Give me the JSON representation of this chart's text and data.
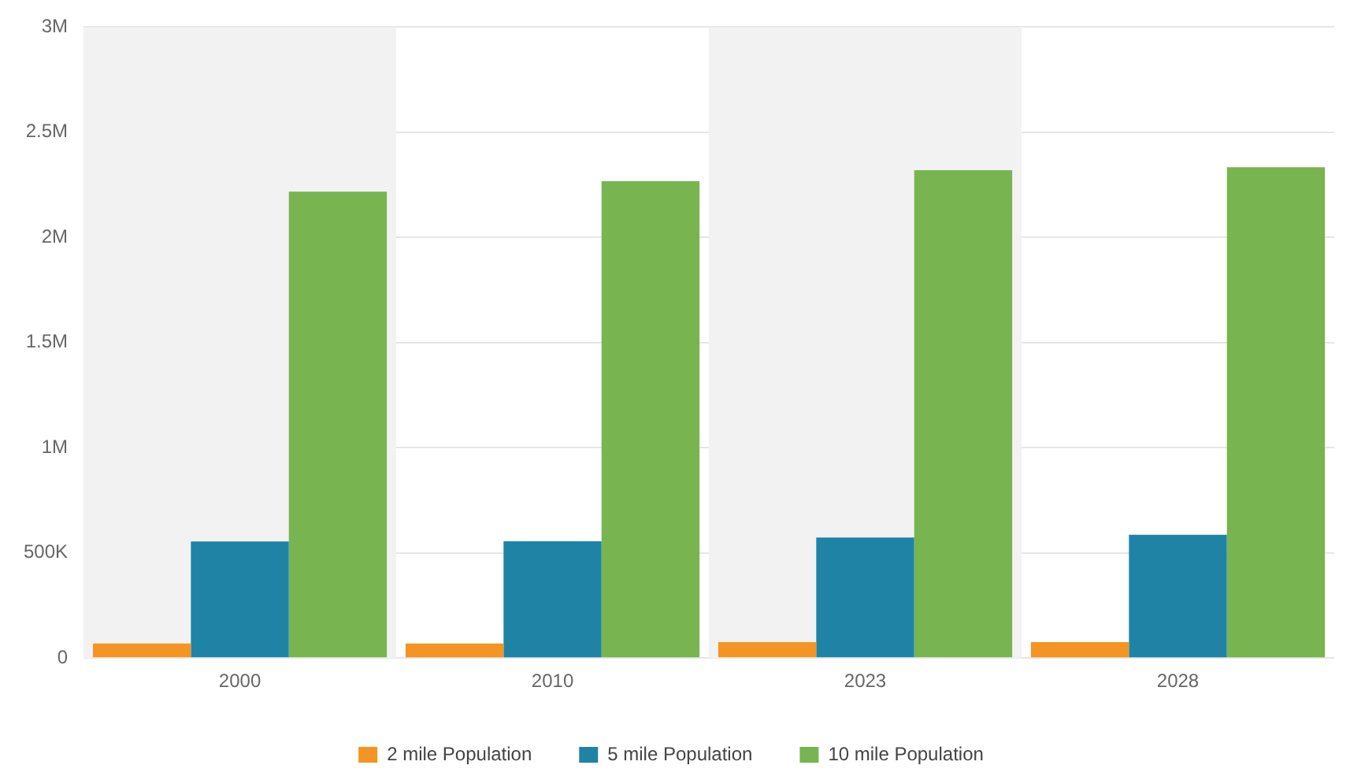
{
  "chart_data": {
    "type": "bar",
    "categories": [
      "2000",
      "2010",
      "2023",
      "2028"
    ],
    "series": [
      {
        "name": "2 mile Population",
        "color": "#f39423",
        "values": [
          69000,
          69000,
          76000,
          76000
        ]
      },
      {
        "name": "5 mile Population",
        "color": "#1f83a6",
        "values": [
          554000,
          555000,
          573000,
          586000
        ]
      },
      {
        "name": "10 mile Population",
        "color": "#78b450",
        "values": [
          2218000,
          2267000,
          2320000,
          2334000
        ]
      }
    ],
    "ylim": [
      0,
      3000000
    ],
    "yticks": [
      {
        "value": 0,
        "label": "0"
      },
      {
        "value": 500000,
        "label": "500K"
      },
      {
        "value": 1000000,
        "label": "1M"
      },
      {
        "value": 1500000,
        "label": "1.5M"
      },
      {
        "value": 2000000,
        "label": "2M"
      },
      {
        "value": 2500000,
        "label": "2.5M"
      },
      {
        "value": 3000000,
        "label": "3M"
      }
    ],
    "bands": [
      {
        "axis": "x",
        "from": "2000",
        "to": "2000",
        "color": "#f2f2f2"
      },
      {
        "axis": "x",
        "from": "2023",
        "to": "2023",
        "color": "#f2f2f2"
      }
    ],
    "grid": "y",
    "legend": "bottom"
  }
}
